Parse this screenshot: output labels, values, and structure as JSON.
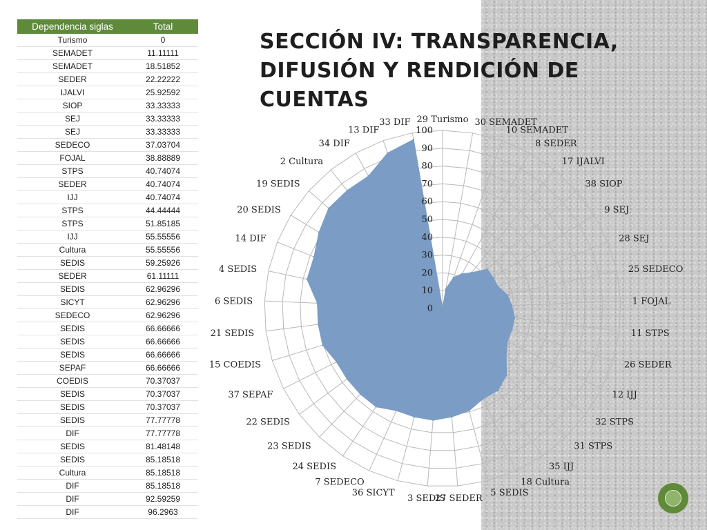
{
  "slide": {
    "title_line1": "Sección IV: Transparencia,",
    "title_line2": "difusión y rendición de cuentas",
    "accent_color": "#5f8a3a",
    "series_color": "#7b9cc4"
  },
  "table": {
    "headers": [
      "Dependencia siglas",
      "Total"
    ],
    "rows": [
      [
        "Turismo",
        "0"
      ],
      [
        "SEMADET",
        "11.11111"
      ],
      [
        "SEMADET",
        "18.51852"
      ],
      [
        "SEDER",
        "22.22222"
      ],
      [
        "IJALVI",
        "25.92592"
      ],
      [
        "SIOP",
        "33.33333"
      ],
      [
        "SEJ",
        "33.33333"
      ],
      [
        "SEJ",
        "33.33333"
      ],
      [
        "SEDECO",
        "37.03704"
      ],
      [
        "FOJAL",
        "38.88889"
      ],
      [
        "STPS",
        "40.74074"
      ],
      [
        "SEDER",
        "40.74074"
      ],
      [
        "IJJ",
        "40.74074"
      ],
      [
        "STPS",
        "44.44444"
      ],
      [
        "STPS",
        "51.85185"
      ],
      [
        "IJJ",
        "55.55556"
      ],
      [
        "Cultura",
        "55.55556"
      ],
      [
        "SEDIS",
        "59.25926"
      ],
      [
        "SEDER",
        "61.11111"
      ],
      [
        "SEDIS",
        "62.96296"
      ],
      [
        "SICYT",
        "62.96296"
      ],
      [
        "SEDECO",
        "62.96296"
      ],
      [
        "SEDIS",
        "66.66666"
      ],
      [
        "SEDIS",
        "66.66666"
      ],
      [
        "SEDIS",
        "66.66666"
      ],
      [
        "SEPAF",
        "66.66666"
      ],
      [
        "COEDIS",
        "70.37037"
      ],
      [
        "SEDIS",
        "70.37037"
      ],
      [
        "SEDIS",
        "70.37037"
      ],
      [
        "SEDIS",
        "77.77778"
      ],
      [
        "DIF",
        "77.77778"
      ],
      [
        "SEDIS",
        "81.48148"
      ],
      [
        "SEDIS",
        "85.18518"
      ],
      [
        "Cultura",
        "85.18518"
      ],
      [
        "DIF",
        "85.18518"
      ],
      [
        "DIF",
        "92.59259"
      ],
      [
        "DIF",
        "96.2963"
      ]
    ]
  },
  "chart_data": {
    "type": "radar",
    "title": "",
    "categories": [
      "29 Turismo",
      "30 SEMADET",
      "10 SEMADET",
      "8 SEDER",
      "17 IJALVI",
      "38 SIOP",
      "9 SEJ",
      "28 SEJ",
      "25 SEDECO",
      "1 FOJAL",
      "11 STPS",
      "26 SEDER",
      "12 IJJ",
      "32 STPS",
      "31 STPS",
      "35 IJJ",
      "18 Cultura",
      "5 SEDIS",
      "27 SEDER",
      "3 SEDIS",
      "36 SICYT",
      "7 SEDECO",
      "24 SEDIS",
      "23 SEDIS",
      "22 SEDIS",
      "37 SEPAF",
      "15 COEDIS",
      "21 SEDIS",
      "6 SEDIS",
      "4 SEDIS",
      "14 DIF",
      "20 SEDIS",
      "19 SEDIS",
      "2 Cultura",
      "34 DIF",
      "13 DIF",
      "33 DIF"
    ],
    "values": [
      0,
      11.11111,
      18.51852,
      22.22222,
      25.92592,
      33.33333,
      33.33333,
      33.33333,
      37.03704,
      38.88889,
      40.74074,
      40.74074,
      40.74074,
      44.44444,
      51.85185,
      55.55556,
      55.55556,
      59.25926,
      61.11111,
      62.96296,
      62.96296,
      62.96296,
      66.66666,
      66.66666,
      66.66666,
      66.66666,
      70.37037,
      70.37037,
      70.37037,
      77.77778,
      77.77778,
      81.48148,
      85.18518,
      85.18518,
      85.18518,
      92.59259,
      96.2963
    ],
    "r_ticks": [
      0,
      10,
      20,
      30,
      40,
      50,
      60,
      70,
      80,
      90,
      100
    ],
    "rlim": [
      0,
      100
    ],
    "grid": true,
    "legend": "none"
  }
}
